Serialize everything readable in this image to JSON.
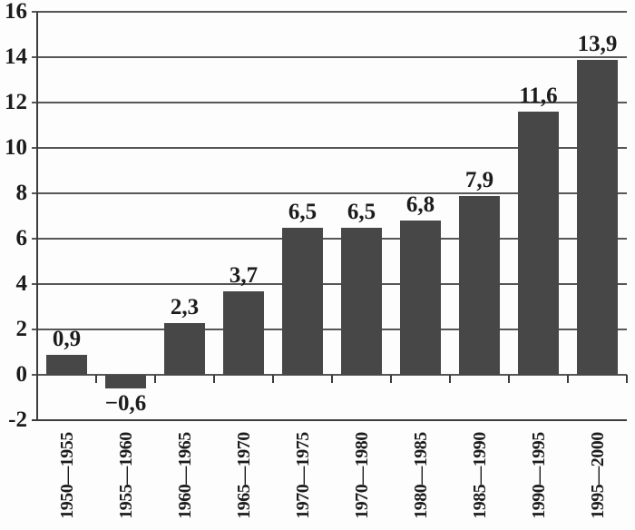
{
  "chart_data": {
    "type": "bar",
    "categories": [
      "1950—1955",
      "1955—1960",
      "1960—1965",
      "1965—1970",
      "1970—1975",
      "1970—1980",
      "1980—1985",
      "1985—1990",
      "1990—1995",
      "1995—2000"
    ],
    "values": [
      0.9,
      -0.6,
      2.3,
      3.7,
      6.5,
      6.5,
      6.8,
      7.9,
      11.6,
      13.9
    ],
    "value_labels": [
      "0,9",
      "−0,6",
      "2,3",
      "3,7",
      "6,5",
      "6,5",
      "6,8",
      "7,9",
      "11,6",
      "13,9"
    ],
    "title": "",
    "xlabel": "",
    "ylabel": "",
    "ylim": [
      -2,
      16
    ],
    "ytick_step": 2,
    "ytick_labels": [
      "-2",
      "0",
      "2",
      "4",
      "6",
      "8",
      "10",
      "12",
      "14",
      "16"
    ],
    "grid": true,
    "legend": null,
    "bar_color": "#474747",
    "gridline_color": "#565656",
    "axis_color": "#3c3c3c",
    "text_color": "#1c1c1c",
    "background_color": "#fdfdfd"
  }
}
